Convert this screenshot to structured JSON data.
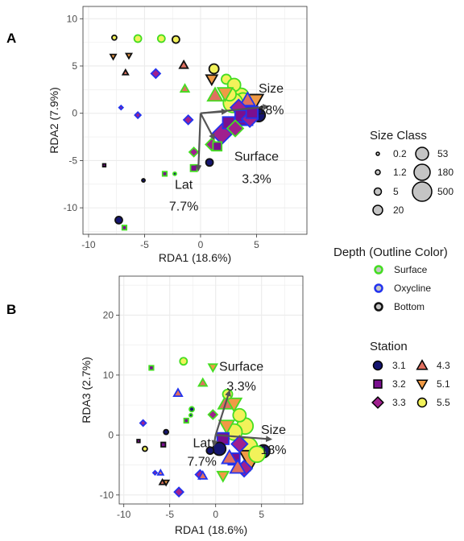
{
  "page_title": "",
  "panel_a": {
    "letter": "A"
  },
  "panel_b": {
    "letter": "B"
  },
  "colors": {
    "station": {
      "3.1": "#151570",
      "3.2": "#7a0f8f",
      "3.3": "#a0208e",
      "4.3": "#e07060",
      "5.1": "#f09a45",
      "5.5": "#f2f25a"
    },
    "depth": {
      "Surface": "#44dd22",
      "Oxycline": "#2233ee",
      "Bottom": "#111111"
    },
    "arrow": "#555555",
    "grid": "#ebebeb",
    "legend_gray": "#c4c4c4"
  },
  "chart_data": [
    {
      "panel": "A",
      "type": "scatter",
      "title": "",
      "xlabel": "RDA1 (18.6%)",
      "ylabel": "RDA2 (7.9%)",
      "xlim": [
        -10.5,
        9.5
      ],
      "ylim": [
        -12.8,
        11.3
      ],
      "xticks": [
        -10,
        -5,
        0,
        5
      ],
      "yticks": [
        -10,
        -5,
        0,
        5,
        10
      ],
      "grid": true,
      "arrows": [
        {
          "name": "Size",
          "x": 6.0,
          "y": 0.7,
          "label": "Size",
          "label2": "18%",
          "lx": 6.3,
          "ly": 2.2,
          "l2y": -0.1
        },
        {
          "name": "Surface",
          "x": 2.3,
          "y": 0.2,
          "label": "Surface",
          "label2": "3.3%",
          "lx": 5.0,
          "ly": -5.0,
          "l2y": -7.4
        },
        {
          "name": "Lat",
          "x": -0.2,
          "y": -6.0,
          "label": "Lat",
          "label2": "7.7%",
          "lx": -1.5,
          "ly": -8.0,
          "l2y": -10.3
        },
        {
          "name": "Lat2",
          "x": 1.2,
          "y": -2.7,
          "label": "",
          "label2": ""
        }
      ],
      "points": [
        [
          -8.5,
          10.8,
          "5.1",
          "Bottom",
          3
        ],
        [
          -8.5,
          8.9,
          "4.3",
          "Bottom",
          3
        ],
        [
          -7.7,
          8.0,
          "5.5",
          "Bottom",
          1.2
        ],
        [
          -7.4,
          5.5,
          "5.5",
          "Surface",
          3
        ],
        [
          -7.8,
          6.0,
          "5.1",
          "Bottom",
          1.2
        ],
        [
          -8.5,
          4.7,
          "3.3",
          "Oxycline",
          3
        ],
        [
          -6.4,
          6.1,
          "5.1",
          "Bottom",
          1.2
        ],
        [
          -6.7,
          4.3,
          "4.3",
          "Bottom",
          1.2
        ],
        [
          -5.6,
          7.9,
          "5.5",
          "Surface",
          5
        ],
        [
          -4.0,
          4.2,
          "3.3",
          "Oxycline",
          5
        ],
        [
          -3.5,
          7.9,
          "5.5",
          "Surface",
          5
        ],
        [
          -3.2,
          7.9,
          "5.5",
          "Surface",
          3
        ],
        [
          -2.2,
          7.8,
          "5.5",
          "Bottom",
          5
        ],
        [
          -1.5,
          5.1,
          "4.3",
          "Bottom",
          5
        ],
        [
          -7.1,
          0.6,
          "3.3",
          "Oxycline",
          0.2
        ],
        [
          -5.6,
          -0.2,
          "3.3",
          "Oxycline",
          1.2
        ],
        [
          -4.0,
          0.4,
          "3.3",
          "Oxycline",
          3
        ],
        [
          -1.1,
          -0.7,
          "3.3",
          "Oxycline",
          5
        ],
        [
          -1.4,
          2.6,
          "4.3",
          "Surface",
          5
        ],
        [
          -0.5,
          2.7,
          "5.5",
          "Surface",
          3
        ],
        [
          -8.6,
          -5.5,
          "3.2",
          "Bottom",
          0.2
        ],
        [
          -6.0,
          -7.3,
          "3.2",
          "Bottom",
          3
        ],
        [
          -5.3,
          -6.2,
          "3.2",
          "Bottom",
          3
        ],
        [
          -5.1,
          -7.1,
          "3.1",
          "Bottom",
          0.2
        ],
        [
          -3.2,
          -6.4,
          "3.2",
          "Surface",
          1.2
        ],
        [
          -2.3,
          -6.4,
          "3.1",
          "Surface",
          0.2
        ],
        [
          -3.2,
          -9.2,
          "3.2",
          "Surface",
          3
        ],
        [
          -0.6,
          -4.1,
          "3.3",
          "Surface",
          5
        ],
        [
          -0.6,
          -5.8,
          "3.2",
          "Surface",
          5
        ],
        [
          0.8,
          -5.2,
          "3.1",
          "Bottom",
          5
        ],
        [
          1.0,
          -3.3,
          "3.3",
          "Surface",
          20
        ],
        [
          -7.3,
          -11.3,
          "3.1",
          "Bottom",
          5
        ],
        [
          -6.8,
          -12.1,
          "3.2",
          "Surface",
          1.2
        ],
        [
          -2.5,
          -11.2,
          "3.1",
          "Surface",
          3
        ],
        [
          0.4,
          -6.5,
          "3.2",
          "Oxycline",
          3
        ],
        [
          1.2,
          4.7,
          "5.5",
          "Bottom",
          20
        ],
        [
          1.0,
          3.6,
          "5.1",
          "Bottom",
          20
        ],
        [
          2.3,
          3.6,
          "5.5",
          "Surface",
          20
        ],
        [
          3.0,
          3.0,
          "5.5",
          "Surface",
          53
        ],
        [
          2.6,
          2.0,
          "5.5",
          "Surface",
          53
        ],
        [
          3.6,
          1.8,
          "5.5",
          "Surface",
          180
        ],
        [
          1.3,
          1.9,
          "4.3",
          "Surface",
          53
        ],
        [
          2.2,
          2.1,
          "5.1",
          "Surface",
          53
        ],
        [
          2.9,
          1.1,
          "5.5",
          "Surface",
          500
        ],
        [
          4.2,
          1.4,
          "4.3",
          "Oxycline",
          53
        ],
        [
          3.4,
          0.6,
          "3.3",
          "Oxycline",
          53
        ],
        [
          4.0,
          0.2,
          "3.1",
          "Oxycline",
          180
        ],
        [
          4.6,
          0.1,
          "3.2",
          "Oxycline",
          53
        ],
        [
          5.2,
          -0.2,
          "3.1",
          "Bottom",
          53
        ],
        [
          3.6,
          -0.3,
          "3.2",
          "Oxycline",
          53
        ],
        [
          4.4,
          -0.6,
          "3.3",
          "Oxycline",
          53
        ],
        [
          4.6,
          1.1,
          "5.1",
          "Bottom",
          500
        ],
        [
          3.8,
          1.3,
          "5.5",
          "Surface",
          180
        ],
        [
          2.5,
          -1.0,
          "3.2",
          "Oxycline",
          53
        ],
        [
          1.9,
          -2.2,
          "3.3",
          "Oxycline",
          180
        ],
        [
          3.1,
          -1.6,
          "3.3",
          "Surface",
          53
        ],
        [
          1.5,
          -3.5,
          "3.2",
          "Surface",
          20
        ],
        [
          4.0,
          -0.5,
          "3.2",
          "Oxycline",
          180
        ]
      ]
    },
    {
      "panel": "B",
      "type": "scatter",
      "title": "",
      "xlabel": "RDA1 (18.6%)",
      "ylabel": "RDA3 (2.7%)",
      "xlim": [
        -10.5,
        9.5
      ],
      "ylim": [
        -11.5,
        26.5
      ],
      "xticks": [
        -10,
        -5,
        0,
        5
      ],
      "yticks": [
        -10,
        0,
        10,
        20
      ],
      "grid": true,
      "arrows": [
        {
          "name": "Size",
          "x": 6.0,
          "y": -0.7,
          "label": "Size",
          "label2": "18%",
          "lx": 6.3,
          "ly": 0.2,
          "l2y": -3.2
        },
        {
          "name": "Surface",
          "x": 1.5,
          "y": 7.3,
          "label": "Surface",
          "label2": "3.3%",
          "lx": 2.8,
          "ly": 10.7,
          "l2y": 7.4
        },
        {
          "name": "Lat",
          "x": -0.2,
          "y": -1.7,
          "label": "Lat",
          "label2": "7.7%",
          "lx": -1.5,
          "ly": -2.0,
          "l2y": -5.1
        }
      ],
      "points": [
        [
          -7.3,
          22.7,
          "5.1",
          "Surface",
          3
        ],
        [
          -8.3,
          13.2,
          "4.3",
          "Oxycline",
          3
        ],
        [
          -7.0,
          11.2,
          "3.2",
          "Surface",
          1.2
        ],
        [
          -3.5,
          12.3,
          "5.5",
          "Surface",
          5
        ],
        [
          -0.3,
          11.3,
          "5.1",
          "Surface",
          5
        ],
        [
          -1.4,
          8.7,
          "4.3",
          "Surface",
          5
        ],
        [
          -4.1,
          7.0,
          "4.3",
          "Oxycline",
          5
        ],
        [
          -3.4,
          6.6,
          "3.2",
          "Surface",
          3
        ],
        [
          -2.6,
          4.3,
          "3.1",
          "Surface",
          1.2
        ],
        [
          -2.7,
          3.3,
          "3.1",
          "Surface",
          0.2
        ],
        [
          -3.2,
          2.4,
          "3.2",
          "Surface",
          1.2
        ],
        [
          -2.2,
          0.8,
          "5.5",
          "Bottom",
          3
        ],
        [
          -0.3,
          3.4,
          "3.3",
          "Surface",
          5
        ],
        [
          -7.5,
          3.1,
          "3.1",
          "Bottom",
          3
        ],
        [
          -7.9,
          2.0,
          "3.3",
          "Oxycline",
          1.2
        ],
        [
          -5.4,
          0.5,
          "3.1",
          "Bottom",
          1.2
        ],
        [
          -5.7,
          -1.6,
          "3.2",
          "Bottom",
          1.2
        ],
        [
          -8.4,
          -1.0,
          "3.2",
          "Bottom",
          0.2
        ],
        [
          -7.7,
          -2.3,
          "5.5",
          "Bottom",
          1.2
        ],
        [
          -5.2,
          -2.3,
          "3.2",
          "Bottom",
          3
        ],
        [
          -4.2,
          -4.1,
          "3.2",
          "Oxycline",
          3
        ],
        [
          -8.3,
          -7.5,
          "4.3",
          "Bottom",
          3
        ],
        [
          -8.4,
          -8.9,
          "5.1",
          "Bottom",
          3
        ],
        [
          -6.6,
          -6.3,
          "3.3",
          "Oxycline",
          0.2
        ],
        [
          -6.0,
          -6.3,
          "4.3",
          "Oxycline",
          1.2
        ],
        [
          -5.8,
          -7.9,
          "4.3",
          "Bottom",
          1.2
        ],
        [
          -5.4,
          -7.9,
          "5.1",
          "Bottom",
          1.2
        ],
        [
          -5.0,
          -8.4,
          "3.3",
          "Oxycline",
          3
        ],
        [
          -4.0,
          -9.5,
          "3.3",
          "Oxycline",
          5
        ],
        [
          -1.7,
          -6.6,
          "3.3",
          "Oxycline",
          5
        ],
        [
          -1.4,
          -6.8,
          "4.3",
          "Oxycline",
          5
        ],
        [
          0.8,
          -6.8,
          "5.1",
          "Surface",
          20
        ],
        [
          1.3,
          6.8,
          "5.5",
          "Surface",
          20
        ],
        [
          1.1,
          5.3,
          "4.3",
          "Surface",
          53
        ],
        [
          2.0,
          5.2,
          "5.1",
          "Surface",
          53
        ],
        [
          2.6,
          3.3,
          "5.5",
          "Surface",
          53
        ],
        [
          3.2,
          1.5,
          "5.5",
          "Surface",
          180
        ],
        [
          1.2,
          1.5,
          "5.1",
          "Surface",
          53
        ],
        [
          2.0,
          0.5,
          "5.5",
          "Surface",
          180
        ],
        [
          0.8,
          -0.6,
          "3.2",
          "Oxycline",
          53
        ],
        [
          2.6,
          -1.5,
          "3.3",
          "Oxycline",
          53
        ],
        [
          3.5,
          -2.0,
          "5.5",
          "Surface",
          500
        ],
        [
          5.2,
          -2.7,
          "3.1",
          "Bottom",
          53
        ],
        [
          4.5,
          -3.2,
          "5.5",
          "Surface",
          180
        ],
        [
          3.8,
          -4.0,
          "5.1",
          "Bottom",
          500
        ],
        [
          2.0,
          -4.0,
          "3.2",
          "Oxycline",
          53
        ],
        [
          1.5,
          -3.8,
          "4.3",
          "Oxycline",
          53
        ],
        [
          2.4,
          -5.4,
          "4.3",
          "Oxycline",
          53
        ],
        [
          3.1,
          -5.6,
          "3.3",
          "Oxycline",
          53
        ],
        [
          0.4,
          -2.3,
          "3.1",
          "Bottom",
          53
        ],
        [
          -0.6,
          -2.6,
          "3.1",
          "Bottom",
          5
        ]
      ]
    }
  ],
  "legend": {
    "size_class": {
      "title": "Size Class",
      "items": [
        {
          "label": "0.2",
          "size": 0.2
        },
        {
          "label": "1.2",
          "size": 1.2
        },
        {
          "label": "5",
          "size": 5
        },
        {
          "label": "20",
          "size": 20
        },
        {
          "label": "53",
          "size": 53
        },
        {
          "label": "180",
          "size": 180
        },
        {
          "label": "500",
          "size": 500
        }
      ]
    },
    "depth": {
      "title": "Depth (Outline Color)",
      "items": [
        {
          "label": "Surface",
          "key": "Surface"
        },
        {
          "label": "Oxycline",
          "key": "Oxycline"
        },
        {
          "label": "Bottom",
          "key": "Bottom"
        }
      ]
    },
    "station": {
      "title": "Station",
      "items": [
        {
          "label": "3.1",
          "key": "3.1",
          "shape": "circle"
        },
        {
          "label": "4.3",
          "key": "4.3",
          "shape": "triangle"
        },
        {
          "label": "3.2",
          "key": "3.2",
          "shape": "square"
        },
        {
          "label": "5.1",
          "key": "5.1",
          "shape": "triangle-down"
        },
        {
          "label": "3.3",
          "key": "3.3",
          "shape": "diamond"
        },
        {
          "label": "5.5",
          "key": "5.5",
          "shape": "circle"
        }
      ]
    }
  }
}
